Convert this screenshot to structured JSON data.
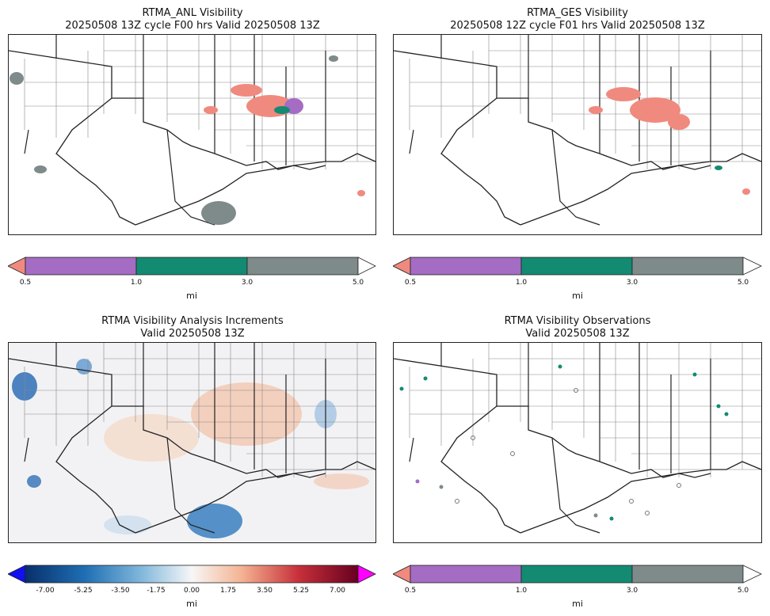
{
  "panels": [
    {
      "title1": "RTMA_ANL Visibility",
      "title2": "20250508 13Z cycle F00 hrs Valid 20250508 13Z"
    },
    {
      "title1": "RTMA_GES Visibility",
      "title2": "20250508 12Z cycle F01 hrs Valid 20250508 13Z"
    },
    {
      "title1": "RTMA Visibility Analysis Increments",
      "title2": "Valid 20250508 13Z"
    },
    {
      "title1": "RTMA Visibility Observations",
      "title2": "Valid 20250508 13Z"
    }
  ],
  "colorbar": {
    "unit": "mi",
    "ticks": [
      "0.5",
      "1.0",
      "3.0",
      "5.0"
    ],
    "colors": {
      "under": "#f08a7e",
      "b1": "#a46cc3",
      "b2": "#138a72",
      "b3": "#7f8a8a",
      "over": "#ffffff"
    }
  },
  "increment_colorbar": {
    "unit": "mi",
    "ticks": [
      "-7.00",
      "-5.25",
      "-3.50",
      "-1.75",
      "0.00",
      "1.75",
      "3.50",
      "5.25",
      "7.00"
    ],
    "colors": {
      "under": "#1010f0",
      "over": "#ff00ff"
    }
  }
}
